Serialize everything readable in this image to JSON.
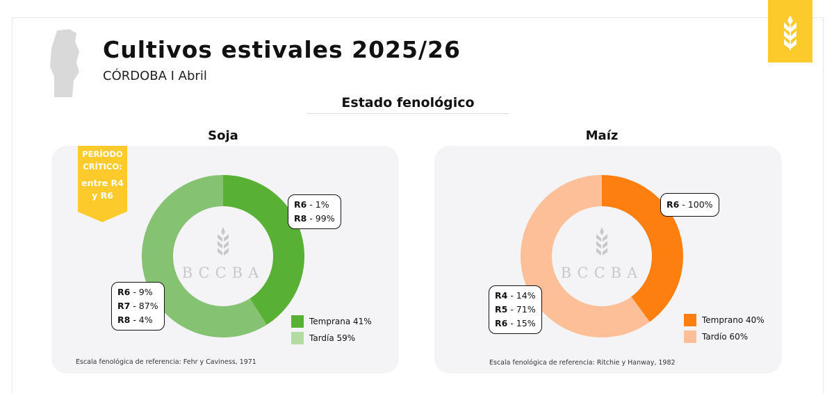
{
  "header": {
    "title": "Cultivos estivales 2025/26",
    "subtitle": "CÓRDOBA I Abril",
    "section": "Estado fenológico",
    "logo_icon": "wheat-icon"
  },
  "colors": {
    "accent": "#fdca2c",
    "soja_early": "#58b035",
    "soja_late": "#85c271",
    "soja_late_legend": "#b5dba5",
    "maiz_early": "#fd7f10",
    "maiz_late": "#fdbf97"
  },
  "watermark": "BCCBA",
  "critical": {
    "line1": "PERÍODO",
    "line2": "CRÍTICO:",
    "line3": "entre R4",
    "line4": "y R6"
  },
  "chart_data": [
    {
      "type": "pie",
      "title": "Soja",
      "categories": [
        "Temprana",
        "Tardía"
      ],
      "values": [
        41,
        59
      ],
      "legend": [
        "Temprana 41%",
        "Tardía 59%"
      ],
      "labels": {
        "early": [
          {
            "stage": "R6",
            "value": "- 1%"
          },
          {
            "stage": "R8",
            "value": "- 99%"
          }
        ],
        "late": [
          {
            "stage": "R6",
            "value": "- 9%"
          },
          {
            "stage": "R7",
            "value": "- 87%"
          },
          {
            "stage": "R8",
            "value": "- 4%"
          }
        ]
      },
      "note": "Escala fenológica de referencia: Fehr y Caviness, 1971"
    },
    {
      "type": "pie",
      "title": "Maíz",
      "categories": [
        "Temprano",
        "Tardío"
      ],
      "values": [
        40,
        60
      ],
      "legend": [
        "Temprano 40%",
        "Tardío 60%"
      ],
      "labels": {
        "early": [
          {
            "stage": "R6",
            "value": "- 100%"
          }
        ],
        "late": [
          {
            "stage": "R4",
            "value": "- 14%"
          },
          {
            "stage": "R5",
            "value": "- 71%"
          },
          {
            "stage": "R6",
            "value": "- 15%"
          }
        ]
      },
      "note": "Escala fenológica de referencia: Ritchie y Hanway, 1982"
    }
  ]
}
